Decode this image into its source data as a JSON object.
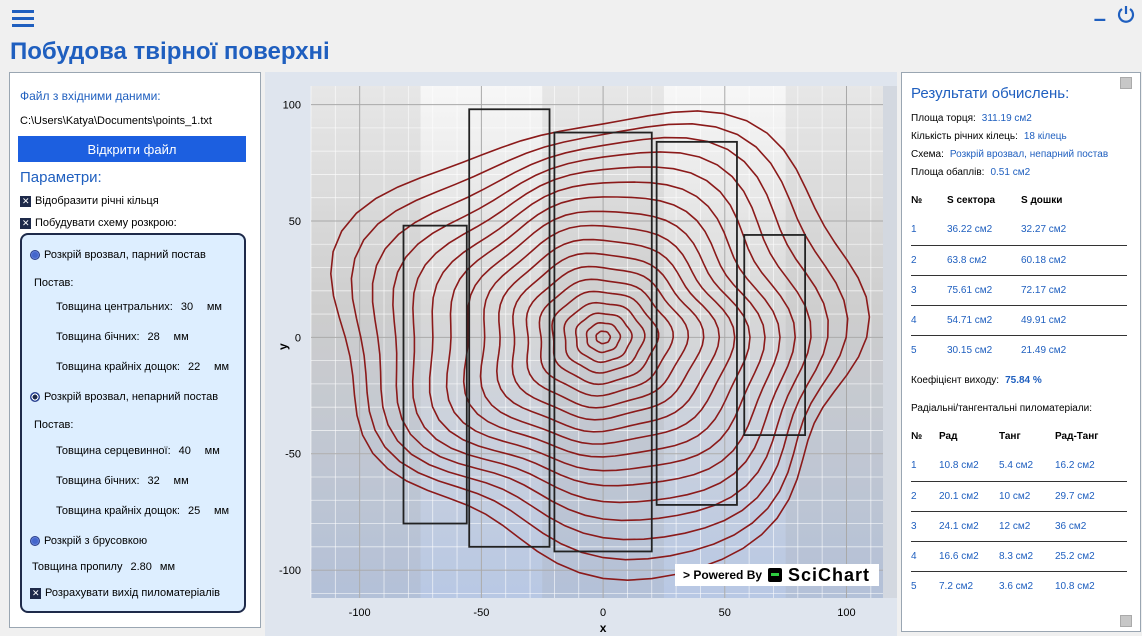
{
  "header": {
    "title": "Побудова твірної поверхні"
  },
  "left": {
    "file_label": "Файл з вхідними даними:",
    "file_path": "C:\\Users\\Katya\\Documents\\points_1.txt",
    "open_button": "Відкрити файл",
    "params_label": "Параметри:",
    "show_rings": "Відобразити річні кільця",
    "build_scheme": "Побудувати схему розкрою:",
    "option1": {
      "label": "Розкрій врозвал, парний постав",
      "postav": "Постав:",
      "central_label": "Товщина центральних:",
      "central_val": "30",
      "side_label": "Товщина бічних:",
      "side_val": "28",
      "edge_label": "Товщина крайніх дощок:",
      "edge_val": "22",
      "unit": "мм"
    },
    "option2": {
      "label": "Розкрій врозвал, непарний постав",
      "postav": "Постав:",
      "core_label": "Товщина серцевинної:",
      "core_val": "40",
      "side_label": "Товщина бічних:",
      "side_val": "32",
      "edge_label": "Товщина крайніх дощок:",
      "edge_val": "25",
      "unit": "мм"
    },
    "option3": {
      "label": "Розкрій з брусовкою"
    },
    "kerf_label": "Товщина пропилу",
    "kerf_val": "2.80",
    "kerf_unit": "мм",
    "calc_yield": "Розрахувати вихід пиломатеріалів"
  },
  "chart_data": {
    "type": "scatter",
    "xlabel": "x",
    "ylabel": "y",
    "xlim": [
      -120,
      115
    ],
    "ylim": [
      -112,
      108
    ],
    "xticks": [
      "-100",
      "-50",
      "0",
      "50",
      "100"
    ],
    "yticks": [
      "100",
      "50",
      "0",
      "-50",
      "-100"
    ],
    "xtick_values": [
      -100,
      -50,
      0,
      50,
      100
    ],
    "ytick_values": [
      100,
      50,
      0,
      -50,
      -100
    ],
    "rings": {
      "count": 18,
      "max_radius": 105,
      "color": "#8b1a1a"
    },
    "boards": [
      {
        "x0": -82,
        "x1": -56,
        "y0": -80,
        "y1": 48
      },
      {
        "x0": -55,
        "x1": -22,
        "y0": -90,
        "y1": 98
      },
      {
        "x0": -20,
        "x1": 20,
        "y0": -92,
        "y1": 88
      },
      {
        "x0": 22,
        "x1": 55,
        "y0": -72,
        "y1": 84
      },
      {
        "x0": 58,
        "x1": 83,
        "y0": -42,
        "y1": 44
      }
    ],
    "watermark": "> Powered By",
    "watermark_logo": "SciChart"
  },
  "right": {
    "title": "Результати обчислень:",
    "area_label": "Площа торця:",
    "area_val": "311.19 см2",
    "rings_label": "Кількість річних кілець:",
    "rings_val": "18 кілець",
    "scheme_label": "Схема:",
    "scheme_val": "Розкрій врозвал, непарний постав",
    "sap_label": "Площа обаплів:",
    "sap_val": "0.51 см2",
    "table1": {
      "headers": [
        "№",
        "S сектора",
        "S дошки"
      ],
      "rows": [
        [
          "1",
          "36.22 см2",
          "32.27 см2"
        ],
        [
          "2",
          "63.8 см2",
          "60.18 см2"
        ],
        [
          "3",
          "75.61 см2",
          "72.17 см2"
        ],
        [
          "4",
          "54.71 см2",
          "49.91 см2"
        ],
        [
          "5",
          "30.15 см2",
          "21.49 см2"
        ]
      ]
    },
    "coef_label": "Коефіцієнт виходу:",
    "coef_val": "75.84 %",
    "rad_title": "Радіальні/тангентальні пиломатеріали:",
    "table2": {
      "headers": [
        "№",
        "Рад",
        "Танг",
        "Рад-Танг"
      ],
      "rows": [
        [
          "1",
          "10.8 см2",
          "5.4 см2",
          "16.2 см2"
        ],
        [
          "2",
          "20.1 см2",
          "10 см2",
          "29.7 см2"
        ],
        [
          "3",
          "24.1 см2",
          "12 см2",
          "36 см2"
        ],
        [
          "4",
          "16.6 см2",
          "8.3 см2",
          "25.2 см2"
        ],
        [
          "5",
          "7.2 см2",
          "3.6 см2",
          "10.8 см2"
        ]
      ]
    }
  }
}
